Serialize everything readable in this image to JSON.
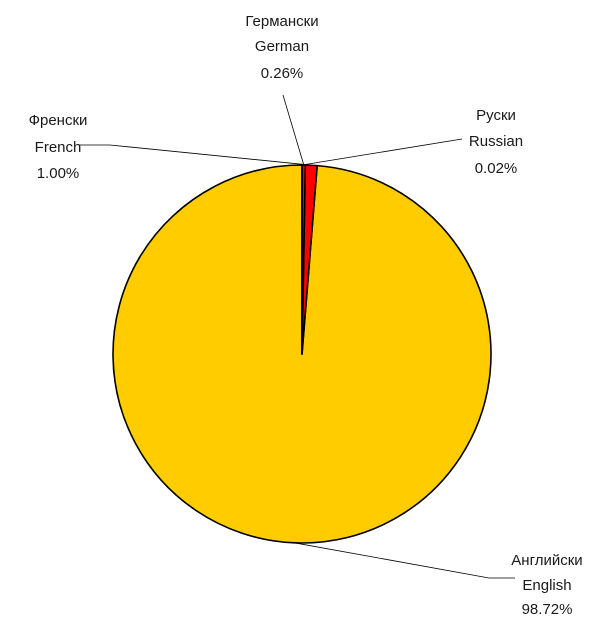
{
  "chart_data": {
    "type": "pie",
    "title": "",
    "start_angle_deg": 0,
    "direction": "clockwise",
    "slices": [
      {
        "label_bg": "Английски",
        "label_en": "English",
        "percent_label": "98.72%",
        "value": 98.72,
        "color": "#ffcc00"
      },
      {
        "label_bg": "Френски",
        "label_en": "French",
        "percent_label": "1.00%",
        "value": 1.0,
        "color": "#ff0000"
      },
      {
        "label_bg": "Германски",
        "label_en": "German",
        "percent_label": "0.26%",
        "value": 0.26,
        "color": "#ff0000"
      },
      {
        "label_bg": "Руски",
        "label_en": "Russian",
        "percent_label": "0.02%",
        "value": 0.02,
        "color": "#ff0000"
      }
    ]
  }
}
